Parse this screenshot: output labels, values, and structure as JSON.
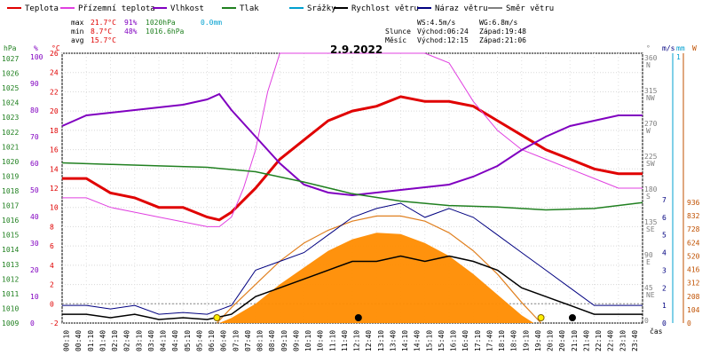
{
  "chart_data": {
    "type": "line",
    "title": "2.9.2022",
    "legend": [
      {
        "name": "Teplota",
        "color": "#e00000"
      },
      {
        "name": "Přízemní teplota",
        "color": "#e040e0"
      },
      {
        "name": "Vlhkost",
        "color": "#8000c0"
      },
      {
        "name": "Tlak",
        "color": "#208020"
      },
      {
        "name": "Srážky",
        "color": "#00a0d0"
      },
      {
        "name": "Rychlost větru",
        "color": "#000000"
      },
      {
        "name": "Náraz větru",
        "color": "#000080"
      },
      {
        "name": "Směr větru",
        "color": "#808080"
      }
    ],
    "stats": {
      "max": {
        "label": "max",
        "temp": "21.7°C",
        "hum": "91%",
        "press": "1020hPa",
        "rain": "0.0mm"
      },
      "min": {
        "label": "min",
        "temp": "8.7°C",
        "hum": "48%",
        "press": "1016.6hPa"
      },
      "avg": {
        "label": "avg",
        "temp": "15.7°C"
      }
    },
    "wind_info": {
      "ws": "WS:4.5m/s",
      "wg": "WG:6.8m/s"
    },
    "sun_info": {
      "label": "Slunce",
      "rise": "Východ:06:24",
      "set": "Západ:19:48"
    },
    "moon_info": {
      "label": "Měsíc",
      "rise": "Východ:12:15",
      "set": "Západ:21:06"
    },
    "axes": {
      "hpa": {
        "unit": "hPa",
        "min": 1009,
        "max": 1027,
        "ticks": [
          1009,
          1010,
          1011,
          1012,
          1013,
          1014,
          1015,
          1016,
          1017,
          1018,
          1019,
          1020,
          1021,
          1022,
          1023,
          1024,
          1025,
          1026,
          1027
        ]
      },
      "pct": {
        "unit": "%",
        "ticks": [
          0,
          10,
          20,
          30,
          40,
          50,
          60,
          70,
          80,
          90,
          100
        ]
      },
      "temp": {
        "unit": "°C",
        "min": -2,
        "max": 26,
        "ticks": [
          -2,
          0,
          2,
          4,
          6,
          8,
          10,
          12,
          14,
          16,
          18,
          20,
          22,
          24,
          26
        ]
      },
      "dir": {
        "unit": "°",
        "ticks": [
          {
            "v": "360",
            "d": "N"
          },
          {
            "v": "315",
            "d": "NW"
          },
          {
            "v": "270",
            "d": "W"
          },
          {
            "v": "225",
            "d": "SW"
          },
          {
            "v": "180",
            "d": "S"
          },
          {
            "v": "135",
            "d": "SE"
          },
          {
            "v": "90",
            "d": "E"
          },
          {
            "v": "45",
            "d": "NE"
          },
          {
            "v": "0",
            "d": ""
          }
        ]
      },
      "ms": {
        "unit": "m/s",
        "min": 0,
        "max": 7,
        "ticks": [
          0,
          1,
          2,
          3,
          4,
          5,
          6,
          7
        ]
      },
      "mm": {
        "unit": "mm",
        "value": "1"
      },
      "wm2": {
        "unit": "W",
        "ticks": [
          0,
          104,
          208,
          312,
          416,
          520,
          624,
          728,
          832,
          936
        ]
      },
      "time_label": "čas",
      "time_ticks": [
        "00:10",
        "00:40",
        "01:10",
        "01:40",
        "02:10",
        "02:40",
        "03:10",
        "03:40",
        "04:10",
        "04:40",
        "05:10",
        "05:40",
        "06:10",
        "06:40",
        "07:10",
        "07:40",
        "08:10",
        "08:40",
        "09:10",
        "09:40",
        "10:10",
        "10:40",
        "11:10",
        "11:40",
        "12:10",
        "12:40",
        "13:10",
        "13:40",
        "14:10",
        "14:40",
        "15:10",
        "15:40",
        "16:10",
        "16:40",
        "17:10",
        "17:40",
        "18:10",
        "18:40",
        "19:10",
        "19:40",
        "20:10",
        "20:40",
        "21:10",
        "21:40",
        "22:10",
        "22:40",
        "23:10",
        "23:40"
      ]
    },
    "series": [
      {
        "name": "Teplota",
        "x_hours": [
          0,
          1,
          2,
          3,
          4,
          5,
          6,
          6.5,
          7,
          8,
          9,
          10,
          11,
          12,
          13,
          14,
          15,
          16,
          17,
          18,
          19,
          20,
          21,
          22,
          23,
          24
        ],
        "values": [
          13,
          13,
          11.5,
          11,
          10,
          10,
          9,
          8.7,
          9.5,
          12,
          15,
          17,
          19,
          20,
          20.5,
          21.5,
          21,
          21,
          20.5,
          19,
          17.5,
          16,
          15,
          14,
          13.5,
          13.5
        ]
      },
      {
        "name": "Přízemní teplota",
        "x_hours": [
          0,
          1,
          2,
          3,
          4,
          5,
          6,
          6.5,
          7,
          7.5,
          8,
          8.5,
          9,
          9.5,
          10,
          11,
          12,
          13,
          14,
          15,
          16,
          17,
          18,
          19,
          20,
          21,
          22,
          23,
          24
        ],
        "values": [
          11,
          11,
          10,
          9.5,
          9,
          8.5,
          8,
          8,
          9,
          12,
          16,
          22,
          26,
          26,
          26,
          26,
          26,
          26,
          26,
          26,
          25,
          21,
          18,
          16,
          15,
          14,
          13,
          12,
          12
        ]
      },
      {
        "name": "Vlhkost",
        "x_hours": [
          0,
          1,
          2,
          3,
          4,
          5,
          6,
          6.5,
          7,
          8,
          9,
          10,
          11,
          12,
          13,
          14,
          15,
          16,
          17,
          18,
          19,
          20,
          21,
          22,
          23,
          24
        ],
        "values": [
          74,
          78,
          79,
          80,
          81,
          82,
          84,
          86,
          80,
          70,
          60,
          52,
          49,
          48,
          49,
          50,
          51,
          52,
          55,
          59,
          65,
          70,
          74,
          76,
          78,
          78
        ]
      },
      {
        "name": "Tlak",
        "x_hours": [
          0,
          2,
          4,
          6,
          8,
          10,
          12,
          14,
          16,
          18,
          20,
          22,
          24
        ],
        "values": [
          1019.9,
          1019.8,
          1019.7,
          1019.6,
          1019.3,
          1018.6,
          1017.8,
          1017.3,
          1017,
          1016.9,
          1016.7,
          1016.8,
          1017.2
        ]
      },
      {
        "name": "Rychlost větru",
        "x_hours": [
          0,
          1,
          2,
          3,
          4,
          5,
          6,
          7,
          7.5,
          8,
          9,
          10,
          11,
          12,
          13,
          14,
          15,
          16,
          17,
          18,
          19,
          20,
          21,
          22,
          23,
          24
        ],
        "values": [
          0.5,
          0.5,
          0.3,
          0.5,
          0.2,
          0.3,
          0.2,
          0.5,
          1,
          1.5,
          2,
          2.5,
          3,
          3.5,
          3.5,
          3.8,
          3.5,
          3.8,
          3.5,
          3,
          2,
          1.5,
          1,
          0.5,
          0.5,
          0.5
        ]
      },
      {
        "name": "Náraz větru",
        "x_hours": [
          0,
          1,
          2,
          3,
          4,
          5,
          6,
          7,
          7.5,
          8,
          9,
          10,
          11,
          12,
          13,
          14,
          15,
          16,
          17,
          18,
          19,
          20,
          21,
          22,
          23,
          24
        ],
        "values": [
          1,
          1,
          0.8,
          1,
          0.5,
          0.6,
          0.5,
          1,
          2,
          3,
          3.5,
          4,
          5,
          6,
          6.5,
          6.8,
          6,
          6.5,
          6,
          5,
          4,
          3,
          2,
          1,
          1,
          1
        ]
      }
    ],
    "solar": {
      "x_hours": [
        6.5,
        7,
        8,
        9,
        10,
        11,
        12,
        13,
        14,
        15,
        16,
        17,
        18,
        19,
        19.5
      ],
      "values": [
        0,
        40,
        150,
        300,
        430,
        560,
        650,
        700,
        690,
        620,
        520,
        380,
        220,
        60,
        0
      ]
    },
    "solar_theory": {
      "x_hours": [
        6.4,
        7,
        8,
        9,
        10,
        11,
        12,
        13,
        14,
        15,
        16,
        17,
        18,
        19,
        19.8
      ],
      "values": [
        0,
        120,
        300,
        480,
        620,
        720,
        790,
        830,
        830,
        790,
        700,
        560,
        380,
        160,
        0
      ]
    }
  }
}
